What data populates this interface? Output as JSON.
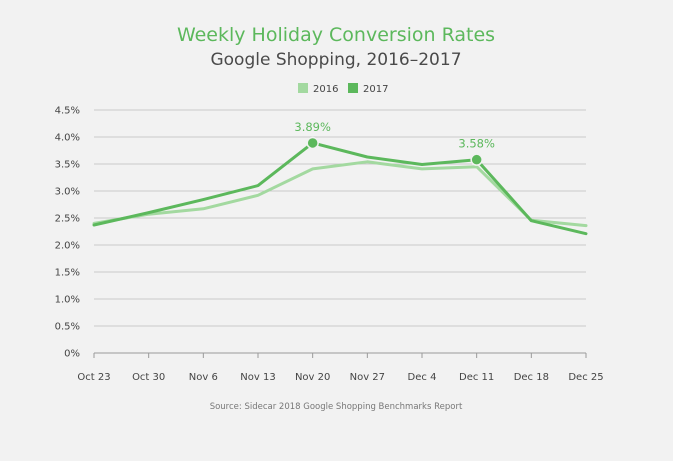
{
  "chart_data": {
    "type": "line",
    "title": "Weekly Holiday Conversion Rates",
    "subtitle": "Google Shopping, 2016–2017",
    "source": "Source: Sidecar 2018 Google Shopping Benchmarks Report",
    "categories": [
      "Oct 23",
      "Oct 30",
      "Nov 6",
      "Nov 13",
      "Nov 20",
      "Nov 27",
      "Dec 4",
      "Dec 11",
      "Dec 18",
      "Dec 25"
    ],
    "ylim": [
      0,
      4.5
    ],
    "yticks": [
      0,
      0.5,
      1.0,
      1.5,
      2.0,
      2.5,
      3.0,
      3.5,
      4.0,
      4.5
    ],
    "ytick_labels": [
      "0%",
      "0.5%",
      "1.0%",
      "1.5%",
      "2.0%",
      "2.5%",
      "3.0%",
      "3.5%",
      "4.0%",
      "4.5%"
    ],
    "grid": true,
    "legend_position": "top-center",
    "series": [
      {
        "name": "2016",
        "color": "#a3d9a0",
        "values": [
          2.4,
          2.57,
          2.67,
          2.92,
          3.41,
          3.54,
          3.41,
          3.45,
          2.46,
          2.36
        ]
      },
      {
        "name": "2017",
        "color": "#5cb85c",
        "values": [
          2.37,
          2.6,
          2.84,
          3.1,
          3.89,
          3.63,
          3.49,
          3.58,
          2.45,
          2.21
        ]
      }
    ],
    "annotations": [
      {
        "series": "2017",
        "index": 4,
        "label": "3.89%"
      },
      {
        "series": "2017",
        "index": 7,
        "label": "3.58%"
      }
    ]
  }
}
